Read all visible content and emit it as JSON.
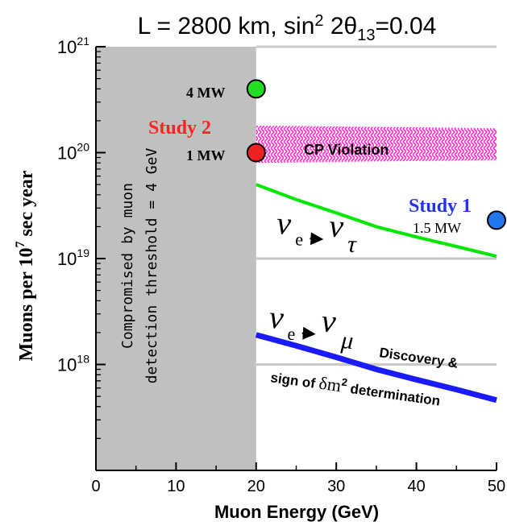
{
  "chart_data": {
    "type": "line",
    "title": {
      "prefix": "L = 2800 km, sin",
      "sup": "2",
      "mid": " 2θ",
      "sub": "13",
      "suffix": "=0.04"
    },
    "xlabel": "Muon Energy  (GeV)",
    "ylabel": {
      "main": "Muons per 10",
      "sup": "7",
      "rest": " sec year"
    },
    "xlim": [
      0,
      50
    ],
    "ylim_log10": [
      17,
      21
    ],
    "log_y": true,
    "x_ticks": [
      "0",
      "10",
      "20",
      "30",
      "40",
      "50"
    ],
    "y_ticks": [
      {
        "base": "10",
        "exp": "21"
      },
      {
        "base": "10",
        "exp": "20"
      },
      {
        "base": "10",
        "exp": "19"
      },
      {
        "base": "10",
        "exp": "18"
      }
    ],
    "grid": "partial horizontal lines at 1e21, 1e20, 1e19, 1e18 for x >= 20",
    "excluded_region": {
      "x_range": [
        0,
        20
      ],
      "label_line1": "Compromised by muon",
      "label_line2": "detection threshold = 4 GeV",
      "color": "#c0c0c0"
    },
    "series": [
      {
        "name": "ν_e → ν_τ",
        "color": "#00e800",
        "x": [
          20,
          25,
          30,
          35,
          40,
          45,
          50
        ],
        "y": [
          5e+19,
          3.6e+19,
          2.7e+19,
          2e+19,
          1.6e+19,
          1.3e+19,
          1.05e+19
        ]
      },
      {
        "name": "ν_e → ν_μ",
        "color": "#1a1aff",
        "x": [
          20,
          25,
          30,
          35,
          40,
          45,
          50
        ],
        "y": [
          1.9e+18,
          1.5e+18,
          1.17e+18,
          9e+17,
          7.2e+17,
          5.8e+17,
          4.6e+17
        ]
      }
    ],
    "band": {
      "label": "CP  Violation",
      "color": "#ff33cc",
      "x": [
        20,
        50
      ],
      "upper": [
        1.8e+20,
        1.7e+20
      ],
      "lower": [
        8e+19,
        8.5e+19
      ]
    },
    "points": [
      {
        "x": 20,
        "y": 4e+20,
        "color": "#22dd22",
        "label": "4 MW"
      },
      {
        "x": 20,
        "y": 1e+20,
        "color": "#ee2222",
        "label": "1 MW"
      },
      {
        "x": 50,
        "y": 2.3e+19,
        "color": "#2277ee",
        "label": "1.5 MW"
      }
    ],
    "annotations": {
      "study2": {
        "text": "Study 2",
        "color": "#ff2222"
      },
      "study1": {
        "text": "Study 1",
        "color": "#2233ee"
      },
      "tau_label": {
        "nu": "ν",
        "e": "e",
        "arrow": "→",
        "tau": "τ"
      },
      "mu_label": {
        "nu": "ν",
        "e": "e",
        "arrow": "→",
        "mu": "μ"
      },
      "discovery_line1": "Discovery &",
      "discovery_line2_a": "sign of ",
      "discovery_line2_b": "δm",
      "discovery_line2_sup": "2",
      "discovery_line2_c": " determination"
    }
  }
}
